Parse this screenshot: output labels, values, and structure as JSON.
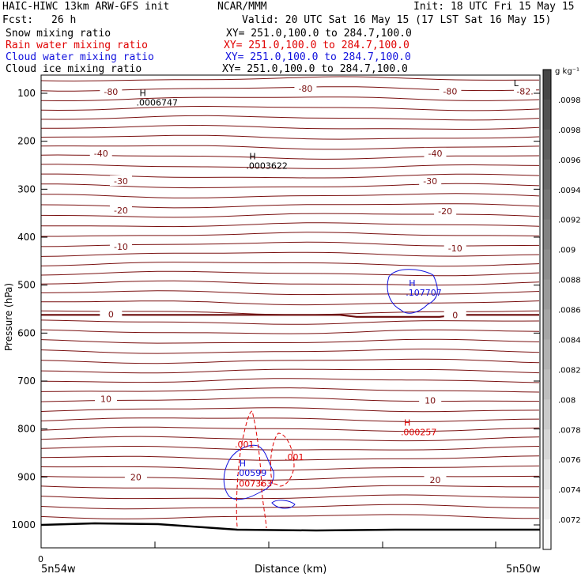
{
  "header": {
    "model": "HAIC-HIWC 13km ARW-GFS init",
    "org": "NCAR/MMM",
    "init": "Init: 18 UTC Fri 15 May 15",
    "fcst_label": "Fcst:",
    "fcst_value": "26 h",
    "valid": "Valid: 20 UTC Sat 16 May 15 (17 LST Sat 16 May 15)",
    "fields": [
      {
        "name": "Snow mixing ratio",
        "xy": "XY= 251.0,100.0 to 284.7,100.0",
        "color": "#000000"
      },
      {
        "name": "Rain water mixing ratio",
        "xy": "XY= 251.0,100.0 to 284.7,100.0",
        "color": "#e00000"
      },
      {
        "name": "Cloud water mixing ratio",
        "xy": "XY= 251.0,100.0 to 284.7,100.0",
        "color": "#1010dd"
      },
      {
        "name": "Cloud ice mixing ratio",
        "xy": "XY= 251.0,100.0 to 284.7,100.0",
        "color": "#000000"
      }
    ]
  },
  "chart_data": {
    "type": "contour",
    "xlabel": "Distance (km)",
    "ylabel": "Pressure (hPa)",
    "x_tick_labels": [
      "0"
    ],
    "x_end_labels": [
      "5n54w",
      "5n50w"
    ],
    "yticks": [
      100,
      200,
      300,
      400,
      500,
      600,
      700,
      800,
      900,
      1000
    ],
    "ylim": [
      1050,
      50
    ],
    "temperature_contours": [
      {
        "value": -80,
        "p": 97
      },
      {
        "value": -40,
        "p": 225
      },
      {
        "value": -30,
        "p": 283
      },
      {
        "value": -20,
        "p": 344
      },
      {
        "value": -10,
        "p": 420
      },
      {
        "value": 0,
        "p": 562
      },
      {
        "value": 10,
        "p": 737
      },
      {
        "value": 20,
        "p": 907
      }
    ],
    "temperature_labels": [
      {
        "text": "-80",
        "x_frac": 0.14,
        "p": 97
      },
      {
        "text": "-80",
        "x_frac": 0.53,
        "p": 90
      },
      {
        "text": "-80",
        "x_frac": 0.82,
        "p": 96
      },
      {
        "text": "-82.",
        "x_frac": 0.97,
        "p": 96
      },
      {
        "text": "-40",
        "x_frac": 0.12,
        "p": 225
      },
      {
        "text": "-40",
        "x_frac": 0.79,
        "p": 225
      },
      {
        "text": "-30",
        "x_frac": 0.16,
        "p": 283
      },
      {
        "text": "-30",
        "x_frac": 0.78,
        "p": 283
      },
      {
        "text": "-20",
        "x_frac": 0.16,
        "p": 344
      },
      {
        "text": "-20",
        "x_frac": 0.81,
        "p": 346
      },
      {
        "text": "-10",
        "x_frac": 0.16,
        "p": 420
      },
      {
        "text": "-10",
        "x_frac": 0.83,
        "p": 423
      },
      {
        "text": "0",
        "x_frac": 0.14,
        "p": 561
      },
      {
        "text": "0",
        "x_frac": 0.83,
        "p": 562
      },
      {
        "text": "10",
        "x_frac": 0.13,
        "p": 737
      },
      {
        "text": "10",
        "x_frac": 0.78,
        "p": 740
      },
      {
        "text": "20",
        "x_frac": 0.19,
        "p": 900
      },
      {
        "text": "20",
        "x_frac": 0.79,
        "p": 906
      }
    ],
    "extrema": [
      {
        "type": "H",
        "value": ".0006747",
        "x_frac": 0.21,
        "p": 106,
        "color": "#000000"
      },
      {
        "type": "H",
        "value": ".0003622",
        "x_frac": 0.43,
        "p": 238,
        "color": "#000000"
      },
      {
        "type": "L",
        "value": "",
        "x_frac": 0.96,
        "p": 85,
        "color": "#000000"
      },
      {
        "type": "H",
        "value": ".107707",
        "x_frac": 0.75,
        "p": 502,
        "color": "#1010dd"
      },
      {
        "type": "H",
        "value": ".000257",
        "x_frac": 0.74,
        "p": 793,
        "color": "#e00000"
      },
      {
        "type": "H",
        "value": ".00599",
        "x_frac": 0.41,
        "p": 878,
        "color": "#1010dd"
      },
      {
        "type": "",
        "value": ".007363",
        "x_frac": 0.41,
        "p": 900,
        "color": "#e00000"
      }
    ],
    "rain_contour_labels": [
      ".001",
      ".001"
    ],
    "colorbar": {
      "unit": "g kg⁻¹",
      "labels": [
        ".0098",
        ".0098",
        ".0096",
        ".0094",
        ".0092",
        ".009",
        ".0088",
        ".0086",
        ".0084",
        ".0082",
        ".008",
        ".0078",
        ".0076",
        ".0074",
        ".0072"
      ]
    }
  }
}
